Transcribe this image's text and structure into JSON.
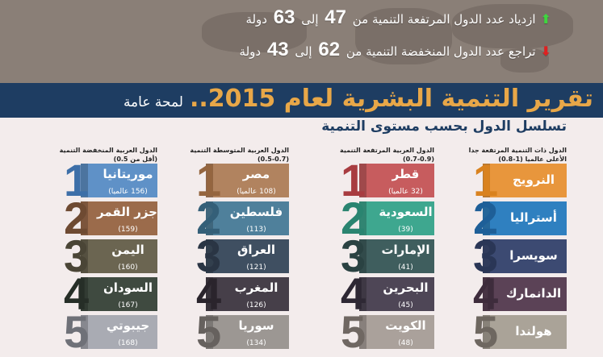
{
  "header": {
    "stats": [
      {
        "icon": "green-up-arrow-icon",
        "color": "#3fd63f",
        "text_before": "ازدياد عدد الدول المرتفعة التنمية من",
        "from": "47",
        "mid": "إلى",
        "to": "63",
        "after": "دولة"
      },
      {
        "icon": "red-down-arrow-icon",
        "color": "#e02020",
        "text_before": "تراجع عدد الدول المنخفضة التنمية من",
        "from": "62",
        "mid": "إلى",
        "to": "43",
        "after": "دولة"
      }
    ],
    "title": "تقرير التنمية البشرية لعام 2015..",
    "title_suffix": "لمحة عامة",
    "subtitle": "تسلسل الدول بحسب مستوى التنمية"
  },
  "columns": [
    {
      "heading": "الدول ذات التنمية المرتفعة جدا الأعلى عالميا (1-0.8)",
      "items": [
        {
          "rank": "1",
          "name": "النرويج",
          "color": "#e8963c",
          "digit": "#d9821f"
        },
        {
          "rank": "2",
          "name": "أستراليا",
          "color": "#2f80c0",
          "digit": "#1e5f98"
        },
        {
          "rank": "3",
          "name": "سويسرا",
          "color": "#3c4a72",
          "digit": "#2a3656"
        },
        {
          "rank": "4",
          "name": "الدانمارك",
          "color": "#5b4256",
          "digit": "#3e2c3c"
        },
        {
          "rank": "5",
          "name": "هولندا",
          "color": "#aaa398",
          "digit": "#6e6760"
        }
      ]
    },
    {
      "heading": "الدول العربية المرتفعة التنمية (0.9-0.7)",
      "items": [
        {
          "rank": "1",
          "name": "قطر",
          "sub": "(32 عالميا)",
          "color": "#c75c5e",
          "digit": "#a83c40"
        },
        {
          "rank": "2",
          "name": "السعودية",
          "sub": "(39)",
          "color": "#3ea78f",
          "digit": "#2a8470"
        },
        {
          "rank": "3",
          "name": "الإمارات",
          "sub": "(41)",
          "color": "#3f5e5e",
          "digit": "#2a4242"
        },
        {
          "rank": "4",
          "name": "البحرين",
          "sub": "(45)",
          "color": "#4e4656",
          "digit": "#2e2834"
        },
        {
          "rank": "5",
          "name": "الكويت",
          "sub": "(48)",
          "color": "#aaa19b",
          "digit": "#6f6762"
        }
      ]
    },
    {
      "heading": "الدول العربية المتوسطة التنمية (0.7-0.5)",
      "items": [
        {
          "rank": "1",
          "name": "مصر",
          "sub": "(108 عالميا)",
          "color": "#b1835f",
          "digit": "#94653f"
        },
        {
          "rank": "2",
          "name": "فلسطين",
          "sub": "(113)",
          "color": "#4f809b",
          "digit": "#345f78"
        },
        {
          "rank": "3",
          "name": "العراق",
          "sub": "(121)",
          "color": "#3f4f61",
          "digit": "#2a3544"
        },
        {
          "rank": "4",
          "name": "المغرب",
          "sub": "(126)",
          "color": "#463f49",
          "digit": "#2a242c"
        },
        {
          "rank": "5",
          "name": "سوريا",
          "sub": "(134)",
          "color": "#9c9793",
          "digit": "#66615e"
        }
      ]
    },
    {
      "heading": "الدول العربية المنخفضة التنمية (أقل من 0.5)",
      "items": [
        {
          "rank": "1",
          "name": "موريتانيا",
          "sub": "(156 عالميا)",
          "color": "#5f91c7",
          "digit": "#3d6fa8"
        },
        {
          "rank": "2",
          "name": "جزر القمر",
          "sub": "(159)",
          "color": "#9b6b4b",
          "digit": "#6e4a32"
        },
        {
          "rank": "3",
          "name": "اليمن",
          "sub": "(160)",
          "color": "#6b6551",
          "digit": "#4a4536"
        },
        {
          "rank": "4",
          "name": "السودان",
          "sub": "(167)",
          "color": "#3f4a40",
          "digit": "#262e27"
        },
        {
          "rank": "5",
          "name": "جيبوتي",
          "sub": "(168)",
          "color": "#a9abb3",
          "digit": "#6f7178"
        }
      ]
    }
  ]
}
